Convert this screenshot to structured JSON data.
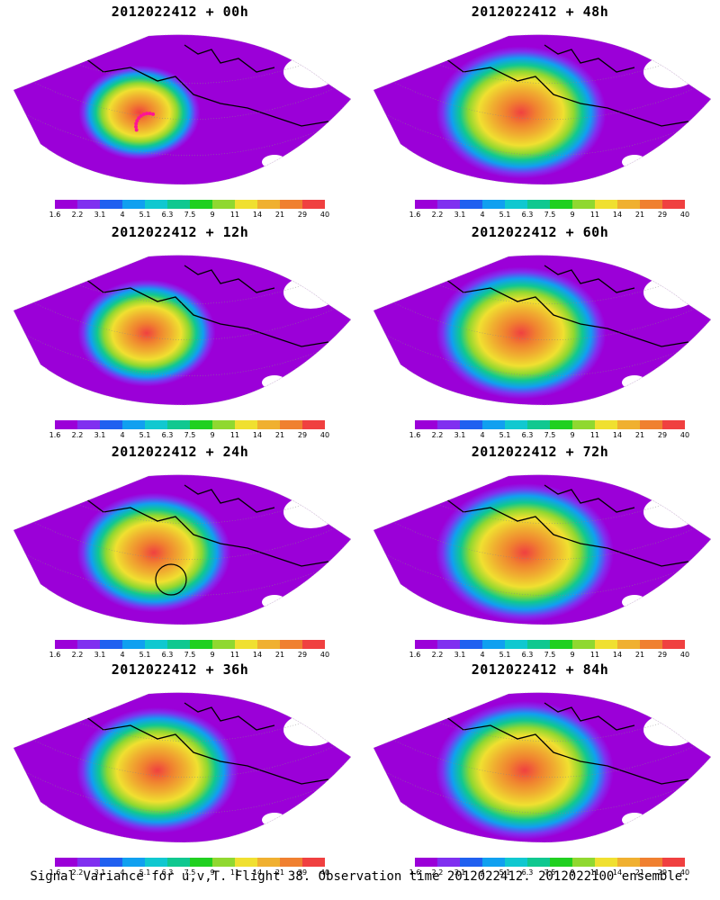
{
  "panels": [
    {
      "title": "2012022412 + 00h",
      "intensity": 0.75,
      "marker": "dots"
    },
    {
      "title": "2012022412 + 48h",
      "intensity": 1.05,
      "marker": "none"
    },
    {
      "title": "2012022412 + 12h",
      "intensity": 0.85,
      "marker": "none"
    },
    {
      "title": "2012022412 + 60h",
      "intensity": 1.05,
      "marker": "none"
    },
    {
      "title": "2012022412 + 24h",
      "intensity": 0.95,
      "marker": "circle"
    },
    {
      "title": "2012022412 + 72h",
      "intensity": 1.1,
      "marker": "none"
    },
    {
      "title": "2012022412 + 36h",
      "intensity": 1.0,
      "marker": "none"
    },
    {
      "title": "2012022412 + 84h",
      "intensity": 1.1,
      "marker": "none"
    }
  ],
  "colorbar": {
    "colors": [
      "#9b00d8",
      "#8030f0",
      "#2060f0",
      "#10a0f0",
      "#10c8d0",
      "#10c890",
      "#20d020",
      "#90d830",
      "#f0e030",
      "#f0b030",
      "#f08030",
      "#f04040"
    ],
    "labels": [
      "1.6",
      "2.2",
      "3.1",
      "4",
      "5.1",
      "6.3",
      "7.5",
      "9",
      "11",
      "14",
      "21",
      "29",
      "40"
    ]
  },
  "footer": "Signal Variance for u,v,T. Flight 38. Observation time 2012022412. 2012022100 ensemble."
}
